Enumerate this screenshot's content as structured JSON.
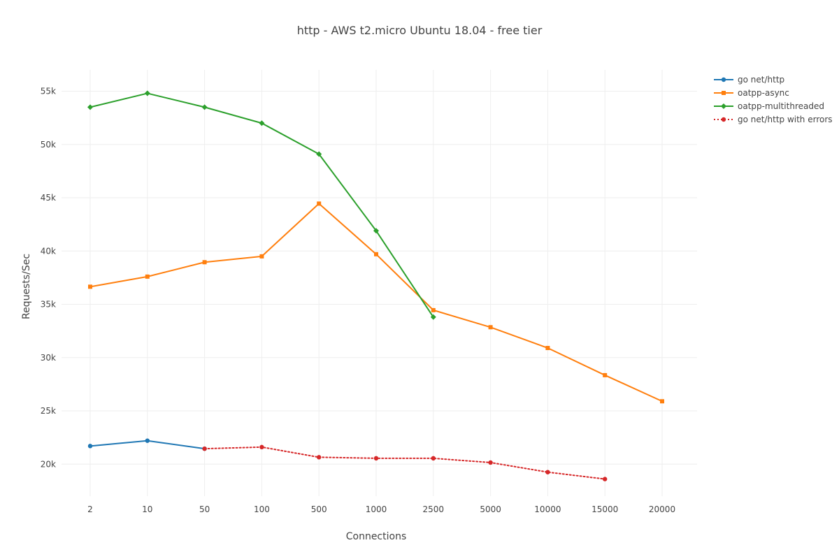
{
  "chart_data": {
    "type": "line",
    "title": "http - AWS t2.micro Ubuntu 18.04 - free tier",
    "xlabel": "Connections",
    "ylabel": "Requests/Sec",
    "categories": [
      "2",
      "10",
      "50",
      "100",
      "500",
      "1000",
      "2500",
      "5000",
      "10000",
      "15000",
      "20000"
    ],
    "x_scale": "categorical",
    "ylim": [
      17000,
      57000
    ],
    "y_ticks": [
      20000,
      25000,
      30000,
      35000,
      40000,
      45000,
      50000,
      55000
    ],
    "y_tick_labels": [
      "20k",
      "25k",
      "30k",
      "35k",
      "40k",
      "45k",
      "50k",
      "55k"
    ],
    "grid": true,
    "legend_position": "top-right",
    "series": [
      {
        "name": "go net/http",
        "color": "#1f77b4",
        "dash": "solid",
        "marker": "circle",
        "values": [
          21700,
          22200,
          21450,
          null,
          null,
          null,
          null,
          null,
          null,
          null,
          null
        ]
      },
      {
        "name": "oatpp-async",
        "color": "#ff7f0e",
        "dash": "solid",
        "marker": "square",
        "values": [
          36650,
          37600,
          38950,
          39500,
          44450,
          39700,
          34450,
          32850,
          30900,
          28350,
          25900
        ]
      },
      {
        "name": "oatpp-multithreaded",
        "color": "#2ca02c",
        "dash": "solid",
        "marker": "diamond",
        "values": [
          53500,
          54800,
          53500,
          52000,
          49100,
          41900,
          33800,
          null,
          null,
          null,
          null
        ]
      },
      {
        "name": "go net/http with errors",
        "color": "#d62728",
        "dash": "dot",
        "marker": "circle",
        "values": [
          null,
          null,
          21450,
          21600,
          20650,
          20550,
          20550,
          20150,
          19250,
          18600,
          null
        ]
      }
    ]
  }
}
